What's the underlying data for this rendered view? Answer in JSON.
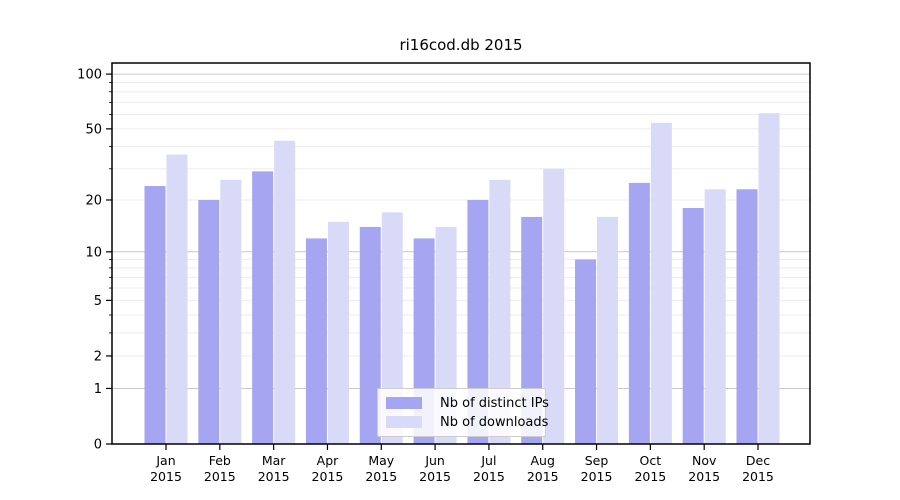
{
  "title": "ri16cod.db 2015",
  "legend": {
    "items": [
      {
        "label": "Nb of distinct IPs",
        "series_key": "distinct_ips"
      },
      {
        "label": "Nb of downloads",
        "series_key": "downloads"
      }
    ]
  },
  "colors": {
    "distinct_ips": "#a5a5f2",
    "downloads": "#d9d9f8",
    "major_grid": "#c9c9c9",
    "minor_grid": "#ededed",
    "axis": "#000000",
    "text": "#000000"
  },
  "chart_data": {
    "type": "bar",
    "title": "ri16cod.db 2015",
    "xlabel": "",
    "ylabel": "",
    "x_tick_year": "2015",
    "categories": [
      "Jan",
      "Feb",
      "Mar",
      "Apr",
      "May",
      "Jun",
      "Jul",
      "Aug",
      "Sep",
      "Oct",
      "Nov",
      "Dec"
    ],
    "series": [
      {
        "name": "Nb of distinct IPs",
        "values": [
          24,
          20,
          29,
          12,
          14,
          12,
          20,
          16,
          9,
          25,
          18,
          23
        ]
      },
      {
        "name": "Nb of downloads",
        "values": [
          36,
          26,
          43,
          15,
          17,
          14,
          26,
          30,
          16,
          54,
          23,
          61
        ]
      }
    ],
    "y_scale": "log10(1+v)",
    "y_axis_max_value": 115,
    "y_tick_labels": [
      "0",
      "1",
      "2",
      "5",
      "10",
      "20",
      "50",
      "100"
    ],
    "y_tick_values": [
      0,
      1,
      2,
      5,
      10,
      20,
      50,
      100
    ],
    "y_major_grid_values": [
      1,
      10,
      100
    ],
    "y_minor_grid_values": [
      2,
      3,
      4,
      5,
      6,
      7,
      8,
      9,
      20,
      30,
      40,
      50,
      60,
      70,
      80,
      90
    ],
    "grid": "on",
    "legend_position": "lower center"
  }
}
